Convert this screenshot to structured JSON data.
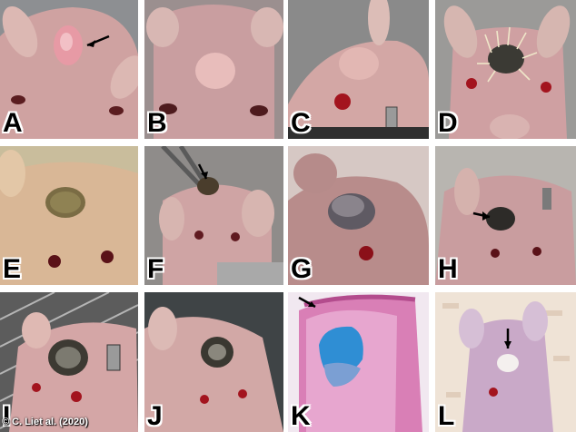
{
  "figure": {
    "panels": [
      {
        "label": "A",
        "content": "nude-mouse-scalp-incision"
      },
      {
        "label": "B",
        "content": "nude-mouse-healed-scalp"
      },
      {
        "label": "C",
        "content": "nude-mouse-side-with-ear-tag"
      },
      {
        "label": "D",
        "content": "nude-mouse-sutured-graft"
      },
      {
        "label": "E",
        "content": "nude-mouse-scalp-graft"
      },
      {
        "label": "F",
        "content": "nude-mouse-graft-with-forceps"
      },
      {
        "label": "G",
        "content": "nude-mouse-closeup-graft"
      },
      {
        "label": "H",
        "content": "nude-mouse-pigmented-graft"
      },
      {
        "label": "I",
        "content": "nude-mouse-in-cage-pigmented-graft"
      },
      {
        "label": "J",
        "content": "nude-mouse-pigmented-graft-dark-bg"
      },
      {
        "label": "K",
        "content": "histology-section-hematoxylin-eosin"
      },
      {
        "label": "L",
        "content": "nude-mouse-on-bedding-graft"
      }
    ],
    "credit": "© C. Liet al. (2020)"
  },
  "colors": {
    "skin": "#d3a8a6",
    "skin_dark": "#a57b7d",
    "background_grey": "#9a9a9a",
    "graft_dark": "#3b3a34",
    "eye_red": "#a3141e",
    "histology_pink": "#d97fb6",
    "histology_blue": "#2f8ed4"
  }
}
